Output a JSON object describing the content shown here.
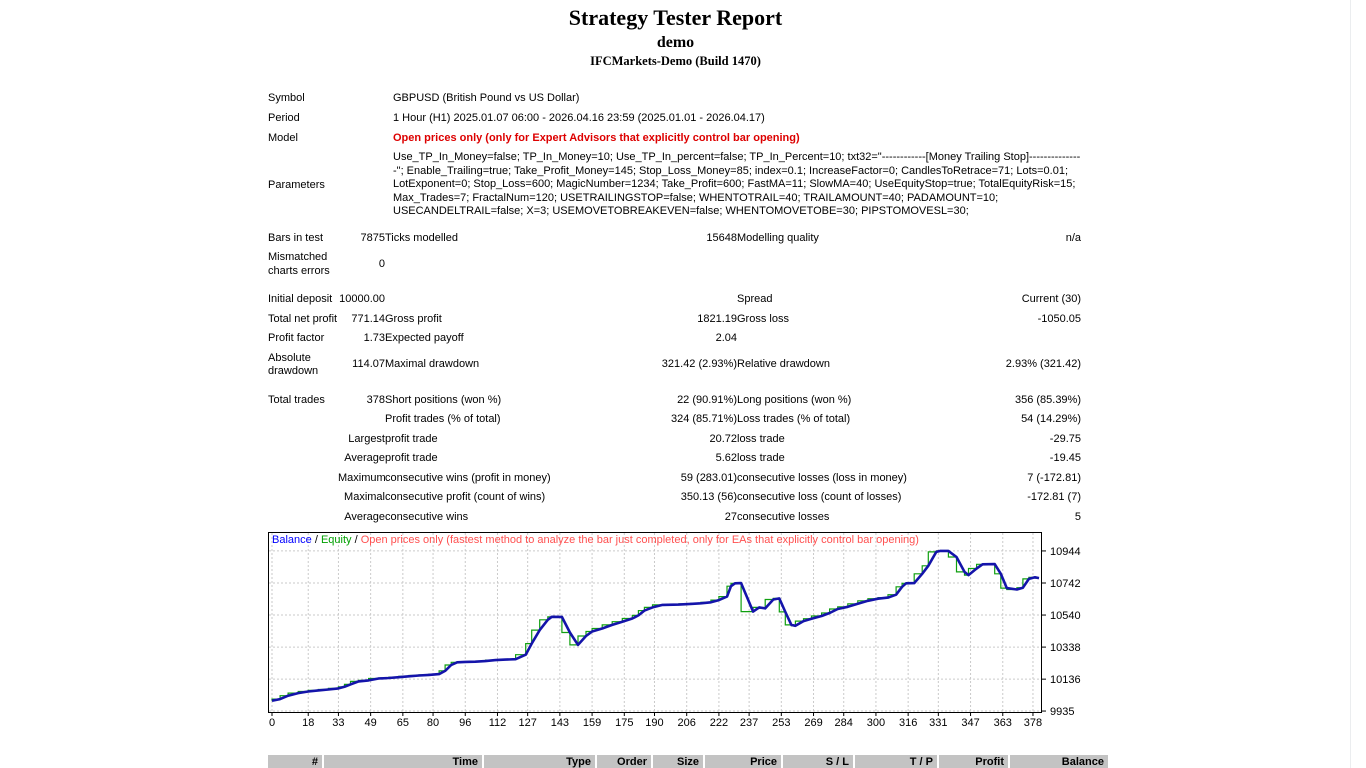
{
  "header": {
    "title": "Strategy Tester Report",
    "subtitle": "demo",
    "broker": "IFCMarkets-Demo (Build 1470)"
  },
  "info": {
    "symbol_label": "Symbol",
    "symbol": "GBPUSD (British Pound vs US Dollar)",
    "period_label": "Period",
    "period": "1 Hour (H1) 2025.01.07 06:00 - 2026.04.16 23:59 (2025.01.01 - 2026.04.17)",
    "model_label": "Model",
    "model": "Open prices only (only for Expert Advisors that explicitly control bar opening)",
    "parameters_label": "Parameters",
    "parameters": "Use_TP_In_Money=false; TP_In_Money=10; Use_TP_In_percent=false; TP_In_Percent=10; txt32=\"------------[Money Trailing Stop]---------------\"; Enable_Trailing=true; Take_Profit_Money=145; Stop_Loss_Money=85; index=0.1; IncreaseFactor=0; CandlesToRetrace=71; Lots=0.01; LotExponent=0; Stop_Loss=600; MagicNumber=1234; Take_Profit=600; FastMA=11; SlowMA=40; UseEquityStop=true; TotalEquityRisk=15; Max_Trades=7; FractalNum=120; USETRAILINGSTOP=false; WHENTOTRAIL=40; TRAILAMOUNT=40; PADAMOUNT=10; USECANDELTRAIL=false; X=3; USEMOVETOBREAKEVEN=false; WHENTOMOVETOBE=30; PIPSTOMOVESL=30;"
  },
  "stats": {
    "sections": [
      [
        [
          "Bars in test",
          "7875",
          "Ticks modelled",
          "15648",
          "Modelling quality",
          "n/a"
        ],
        [
          "Mismatched charts errors",
          "0",
          "",
          "",
          "",
          ""
        ]
      ],
      [
        [
          "Initial deposit",
          "10000.00",
          "",
          "",
          "Spread",
          "Current (30)"
        ],
        [
          "Total net profit",
          "771.14",
          "Gross profit",
          "1821.19",
          "Gross loss",
          "-1050.05"
        ],
        [
          "Profit factor",
          "1.73",
          "Expected payoff",
          "2.04",
          "",
          ""
        ],
        [
          "Absolute drawdown",
          "114.07",
          "Maximal drawdown",
          "321.42 (2.93%)",
          "Relative drawdown",
          "2.93% (321.42)"
        ]
      ],
      [
        [
          "Total trades",
          "378",
          "Short positions (won %)",
          "22 (90.91%)",
          "Long positions (won %)",
          "356 (85.39%)"
        ],
        [
          "",
          "",
          "Profit trades (% of total)",
          "324 (85.71%)",
          "Loss trades (% of total)",
          "54 (14.29%)"
        ],
        [
          "",
          "Largest",
          "profit trade",
          "20.72",
          "loss trade",
          "-29.75"
        ],
        [
          "",
          "Average",
          "profit trade",
          "5.62",
          "loss trade",
          "-19.45"
        ],
        [
          "",
          "Maximum",
          "consecutive wins (profit in money)",
          "59 (283.01)",
          "consecutive losses (loss in money)",
          "7 (-172.81)"
        ],
        [
          "",
          "Maximal",
          "consecutive profit (count of wins)",
          "350.13 (56)",
          "consecutive loss (count of losses)",
          "-172.81 (7)"
        ],
        [
          "",
          "Average",
          "consecutive wins",
          "27",
          "consecutive losses",
          "5"
        ]
      ]
    ]
  },
  "chart_data": {
    "type": "line",
    "title": "",
    "legend": [
      {
        "label": "Balance",
        "color": "#0000ff"
      },
      {
        "label": "Equity",
        "color": "#00a000"
      },
      {
        "label": "Open prices only (fastest method to analyze the bar just completed, only for EAs that explicitly control bar opening)",
        "color": "#ff5050"
      }
    ],
    "legend_separator": " / ",
    "x_ticks": [
      0,
      18,
      33,
      49,
      65,
      80,
      96,
      112,
      127,
      143,
      159,
      175,
      190,
      206,
      222,
      237,
      253,
      269,
      284,
      300,
      316,
      331,
      347,
      363,
      378
    ],
    "y_ticks": [
      10944,
      10742,
      10540,
      10338,
      10136,
      9935
    ],
    "x_range": [
      0,
      381
    ],
    "y_range": [
      9929,
      11057
    ],
    "grid": true,
    "grid_color": "#cacaca",
    "series": [
      {
        "name": "Balance",
        "color": "#1414aa",
        "width": 2.6,
        "interp": "linear",
        "points": [
          [
            0,
            10000
          ],
          [
            4,
            10010
          ],
          [
            8,
            10032
          ],
          [
            13,
            10048
          ],
          [
            18,
            10058
          ],
          [
            23,
            10065
          ],
          [
            28,
            10071
          ],
          [
            33,
            10078
          ],
          [
            36,
            10088
          ],
          [
            39,
            10103
          ],
          [
            43,
            10122
          ],
          [
            48,
            10128
          ],
          [
            53,
            10140
          ],
          [
            58,
            10143
          ],
          [
            63,
            10148
          ],
          [
            68,
            10154
          ],
          [
            73,
            10159
          ],
          [
            78,
            10163
          ],
          [
            83,
            10168
          ],
          [
            86,
            10188
          ],
          [
            89,
            10225
          ],
          [
            92,
            10242
          ],
          [
            96,
            10245
          ],
          [
            101,
            10246
          ],
          [
            106,
            10250
          ],
          [
            111,
            10256
          ],
          [
            116,
            10259
          ],
          [
            121,
            10262
          ],
          [
            126,
            10290
          ],
          [
            129,
            10360
          ],
          [
            133,
            10445
          ],
          [
            137,
            10510
          ],
          [
            139,
            10529
          ],
          [
            144,
            10528
          ],
          [
            148,
            10430
          ],
          [
            152,
            10352
          ],
          [
            156,
            10408
          ],
          [
            159,
            10436
          ],
          [
            164,
            10455
          ],
          [
            169,
            10478
          ],
          [
            174,
            10498
          ],
          [
            179,
            10518
          ],
          [
            182,
            10538
          ],
          [
            185,
            10568
          ],
          [
            189,
            10588
          ],
          [
            194,
            10604
          ],
          [
            202,
            10606
          ],
          [
            208,
            10610
          ],
          [
            213,
            10614
          ],
          [
            218,
            10620
          ],
          [
            222,
            10634
          ],
          [
            226,
            10656
          ],
          [
            228,
            10722
          ],
          [
            230,
            10740
          ],
          [
            233,
            10741
          ],
          [
            239,
            10562
          ],
          [
            242,
            10588
          ],
          [
            245,
            10582
          ],
          [
            249,
            10638
          ],
          [
            252,
            10645
          ],
          [
            255,
            10560
          ],
          [
            258,
            10478
          ],
          [
            260,
            10472
          ],
          [
            264,
            10502
          ],
          [
            268,
            10517
          ],
          [
            273,
            10534
          ],
          [
            277,
            10553
          ],
          [
            281,
            10578
          ],
          [
            286,
            10592
          ],
          [
            291,
            10611
          ],
          [
            296,
            10630
          ],
          [
            301,
            10643
          ],
          [
            306,
            10650
          ],
          [
            310,
            10668
          ],
          [
            313,
            10718
          ],
          [
            315,
            10740
          ],
          [
            319,
            10741
          ],
          [
            323,
            10800
          ],
          [
            326,
            10850
          ],
          [
            330,
            10938
          ],
          [
            332,
            10944
          ],
          [
            336,
            10944
          ],
          [
            340,
            10906
          ],
          [
            344,
            10812
          ],
          [
            346,
            10792
          ],
          [
            350,
            10833
          ],
          [
            353,
            10860
          ],
          [
            359,
            10861
          ],
          [
            362,
            10800
          ],
          [
            365,
            10710
          ],
          [
            370,
            10701
          ],
          [
            373,
            10712
          ],
          [
            376,
            10768
          ],
          [
            379,
            10778
          ],
          [
            381,
            10773
          ]
        ]
      },
      {
        "name": "Equity",
        "color": "#0f9f0f",
        "width": 1.2,
        "interp": "step-before",
        "derive_from": "Balance"
      }
    ]
  },
  "trades_table": {
    "columns": [
      "#",
      "Time",
      "Type",
      "Order",
      "Size",
      "Price",
      "S / L",
      "T / P",
      "Profit",
      "Balance"
    ]
  }
}
